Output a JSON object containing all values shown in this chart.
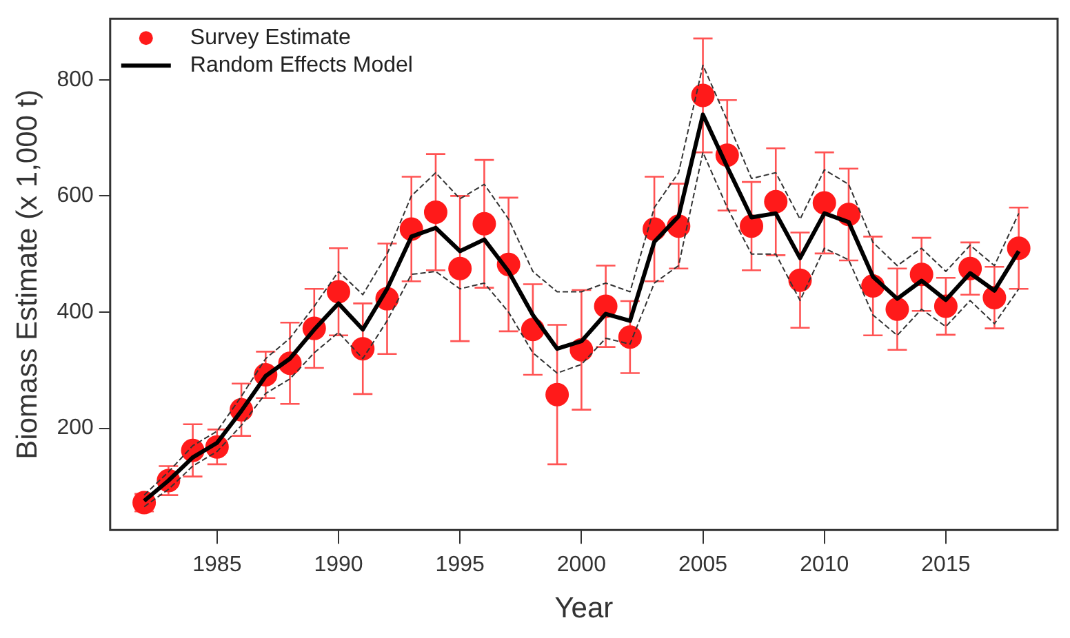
{
  "chart_data": {
    "type": "line",
    "xlabel": "Year",
    "ylabel": "Biomass Estimate (x 1,000 t)",
    "x": [
      1982,
      1983,
      1984,
      1985,
      1986,
      1987,
      1988,
      1989,
      1990,
      1991,
      1992,
      1993,
      1994,
      1995,
      1996,
      1997,
      1998,
      1999,
      2000,
      2001,
      2002,
      2003,
      2004,
      2005,
      2006,
      2007,
      2008,
      2009,
      2010,
      2011,
      2012,
      2013,
      2014,
      2015,
      2016,
      2017,
      2018
    ],
    "series": [
      {
        "name": "Survey Estimate",
        "type": "scatter",
        "marker": "circle",
        "color": "#ff1a1a",
        "values": [
          72,
          110,
          162,
          168,
          232,
          292,
          312,
          372,
          435,
          337,
          423,
          543,
          572,
          475,
          552,
          482,
          370,
          258,
          335,
          410,
          357,
          543,
          548,
          773,
          670,
          548,
          590,
          455,
          588,
          568,
          445,
          405,
          465,
          410,
          475,
          425,
          510
        ],
        "errors": [
          15,
          25,
          45,
          30,
          45,
          40,
          70,
          68,
          75,
          78,
          95,
          90,
          100,
          125,
          110,
          115,
          78,
          120,
          103,
          70,
          62,
          90,
          73,
          98,
          95,
          76,
          92,
          82,
          87,
          79,
          85,
          70,
          63,
          49,
          45,
          53,
          70
        ]
      },
      {
        "name": "Random Effects Model",
        "type": "line",
        "marker": "none",
        "line_style": "solid",
        "color": "#000000",
        "values": [
          75,
          110,
          150,
          175,
          230,
          290,
          320,
          370,
          415,
          370,
          440,
          530,
          545,
          505,
          525,
          470,
          395,
          337,
          350,
          397,
          385,
          521,
          565,
          740,
          650,
          563,
          570,
          493,
          570,
          555,
          461,
          423,
          454,
          421,
          467,
          437,
          505
        ]
      },
      {
        "marker": "none",
        "line_style": "dashed",
        "color": "#333333",
        "values": [
          65,
          95,
          135,
          160,
          205,
          260,
          285,
          330,
          365,
          320,
          385,
          465,
          470,
          440,
          450,
          400,
          330,
          295,
          310,
          355,
          345,
          450,
          480,
          675,
          580,
          500,
          500,
          420,
          510,
          490,
          395,
          360,
          405,
          375,
          420,
          380,
          440
        ]
      },
      {
        "marker": "none",
        "line_style": "dashed",
        "color": "#333333",
        "values": [
          85,
          125,
          170,
          195,
          255,
          320,
          355,
          410,
          470,
          430,
          500,
          600,
          640,
          595,
          620,
          560,
          470,
          435,
          435,
          450,
          435,
          580,
          640,
          825,
          730,
          630,
          640,
          560,
          645,
          620,
          520,
          480,
          510,
          470,
          515,
          480,
          570
        ]
      }
    ],
    "xlim": [
      1980.6,
      2019.6
    ],
    "xticks": [
      1985,
      1990,
      1995,
      2000,
      2005,
      2010,
      2015
    ],
    "ylim": [
      25,
      905
    ],
    "yticks": [
      200,
      400,
      600,
      800
    ],
    "legend": "top left"
  }
}
